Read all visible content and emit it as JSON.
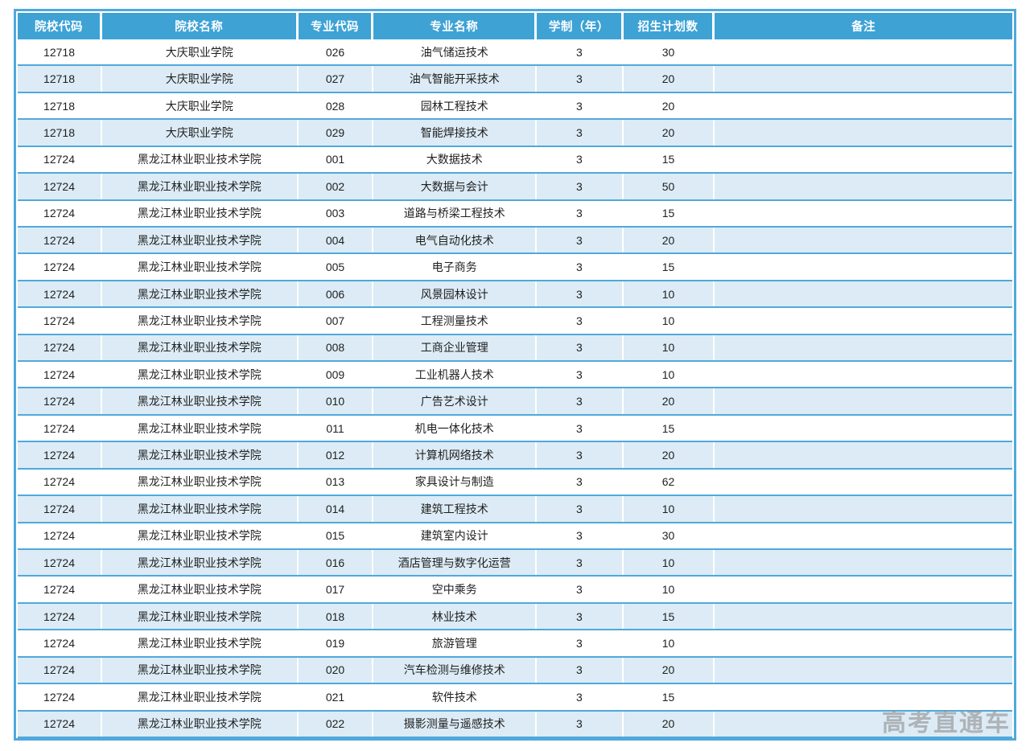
{
  "page": {
    "watermark": "高考直通车"
  },
  "colors": {
    "header_bg": "#3EA2D5",
    "grid_line": "#4FA9DC",
    "alt_row_bg": "#DCEBF5",
    "header_text": "#FFFFFF",
    "body_text": "#1F1F1F",
    "watermark_text": "#8F8F8F"
  },
  "table": {
    "columns": [
      "院校代码",
      "院校名称",
      "专业代码",
      "专业名称",
      "学制（年）",
      "招生计划数",
      "备注"
    ],
    "rows": [
      [
        "12718",
        "大庆职业学院",
        "026",
        "油气储运技术",
        "3",
        "30",
        ""
      ],
      [
        "12718",
        "大庆职业学院",
        "027",
        "油气智能开采技术",
        "3",
        "20",
        ""
      ],
      [
        "12718",
        "大庆职业学院",
        "028",
        "园林工程技术",
        "3",
        "20",
        ""
      ],
      [
        "12718",
        "大庆职业学院",
        "029",
        "智能焊接技术",
        "3",
        "20",
        ""
      ],
      [
        "12724",
        "黑龙江林业职业技术学院",
        "001",
        "大数据技术",
        "3",
        "15",
        ""
      ],
      [
        "12724",
        "黑龙江林业职业技术学院",
        "002",
        "大数据与会计",
        "3",
        "50",
        ""
      ],
      [
        "12724",
        "黑龙江林业职业技术学院",
        "003",
        "道路与桥梁工程技术",
        "3",
        "15",
        ""
      ],
      [
        "12724",
        "黑龙江林业职业技术学院",
        "004",
        "电气自动化技术",
        "3",
        "20",
        ""
      ],
      [
        "12724",
        "黑龙江林业职业技术学院",
        "005",
        "电子商务",
        "3",
        "15",
        ""
      ],
      [
        "12724",
        "黑龙江林业职业技术学院",
        "006",
        "风景园林设计",
        "3",
        "10",
        ""
      ],
      [
        "12724",
        "黑龙江林业职业技术学院",
        "007",
        "工程测量技术",
        "3",
        "10",
        ""
      ],
      [
        "12724",
        "黑龙江林业职业技术学院",
        "008",
        "工商企业管理",
        "3",
        "10",
        ""
      ],
      [
        "12724",
        "黑龙江林业职业技术学院",
        "009",
        "工业机器人技术",
        "3",
        "10",
        ""
      ],
      [
        "12724",
        "黑龙江林业职业技术学院",
        "010",
        "广告艺术设计",
        "3",
        "20",
        ""
      ],
      [
        "12724",
        "黑龙江林业职业技术学院",
        "011",
        "机电一体化技术",
        "3",
        "15",
        ""
      ],
      [
        "12724",
        "黑龙江林业职业技术学院",
        "012",
        "计算机网络技术",
        "3",
        "20",
        ""
      ],
      [
        "12724",
        "黑龙江林业职业技术学院",
        "013",
        "家具设计与制造",
        "3",
        "62",
        ""
      ],
      [
        "12724",
        "黑龙江林业职业技术学院",
        "014",
        "建筑工程技术",
        "3",
        "10",
        ""
      ],
      [
        "12724",
        "黑龙江林业职业技术学院",
        "015",
        "建筑室内设计",
        "3",
        "30",
        ""
      ],
      [
        "12724",
        "黑龙江林业职业技术学院",
        "016",
        "酒店管理与数字化运营",
        "3",
        "10",
        ""
      ],
      [
        "12724",
        "黑龙江林业职业技术学院",
        "017",
        "空中乘务",
        "3",
        "10",
        ""
      ],
      [
        "12724",
        "黑龙江林业职业技术学院",
        "018",
        "林业技术",
        "3",
        "15",
        ""
      ],
      [
        "12724",
        "黑龙江林业职业技术学院",
        "019",
        "旅游管理",
        "3",
        "10",
        ""
      ],
      [
        "12724",
        "黑龙江林业职业技术学院",
        "020",
        "汽车检测与维修技术",
        "3",
        "20",
        ""
      ],
      [
        "12724",
        "黑龙江林业职业技术学院",
        "021",
        "软件技术",
        "3",
        "15",
        ""
      ],
      [
        "12724",
        "黑龙江林业职业技术学院",
        "022",
        "摄影测量与遥感技术",
        "3",
        "20",
        ""
      ]
    ]
  }
}
